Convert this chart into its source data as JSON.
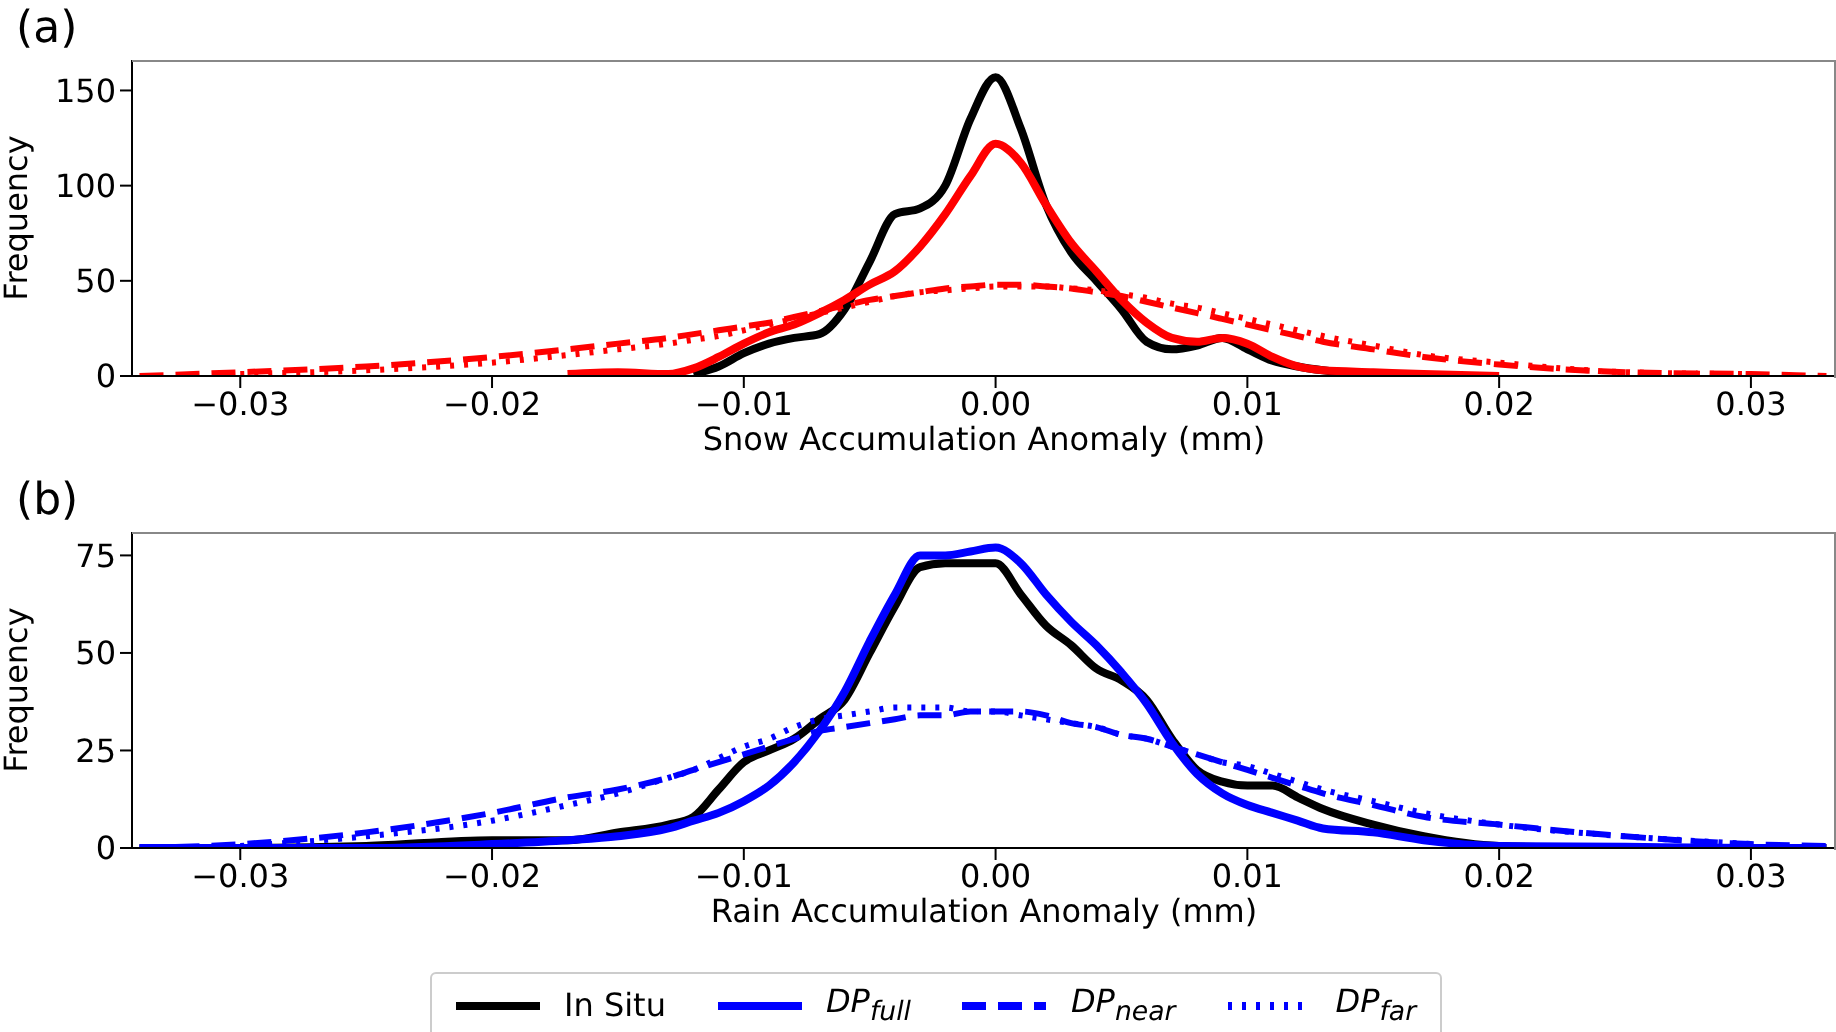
{
  "chart_data": [
    {
      "type": "line",
      "title": "(a)",
      "xlabel": "Snow Accumulation Anomaly (mm)",
      "ylabel": "Frequency",
      "x": [
        -0.034,
        -0.03,
        -0.025,
        -0.02,
        -0.017,
        -0.015,
        -0.013,
        -0.012,
        -0.011,
        -0.01,
        -0.009,
        -0.008,
        -0.007,
        -0.006,
        -0.005,
        -0.004,
        -0.003,
        -0.002,
        -0.001,
        0,
        0.001,
        0.002,
        0.003,
        0.004,
        0.005,
        0.006,
        0.007,
        0.008,
        0.009,
        0.01,
        0.011,
        0.012,
        0.013,
        0.015,
        0.017,
        0.02,
        0.025,
        0.03,
        0.033
      ],
      "xlim": [
        -0.0343,
        0.0333
      ],
      "ylim": [
        0,
        166
      ],
      "xticks": [
        {
          "value": -0.03,
          "label": "−0.03"
        },
        {
          "value": -0.02,
          "label": "−0.02"
        },
        {
          "value": -0.01,
          "label": "−0.01"
        },
        {
          "value": 0,
          "label": "0.00"
        },
        {
          "value": 0.01,
          "label": "0.01"
        },
        {
          "value": 0.02,
          "label": "0.02"
        },
        {
          "value": 0.03,
          "label": "0.03"
        }
      ],
      "yticks": [
        0,
        50,
        100,
        150
      ],
      "grid": false,
      "marker": "none",
      "series": [
        {
          "color": "#000000",
          "line_style": "solid",
          "values": [
            null,
            null,
            null,
            null,
            null,
            null,
            null,
            1,
            5,
            12,
            17,
            20,
            22,
            35,
            60,
            85,
            88,
            100,
            135,
            157,
            130,
            90,
            65,
            50,
            35,
            18,
            14,
            16,
            20,
            14,
            8,
            5,
            3,
            1,
            0,
            null,
            null,
            null,
            null
          ]
        },
        {
          "color": "#ff0000",
          "line_style": "solid",
          "values": [
            null,
            null,
            null,
            null,
            1,
            2,
            1,
            4,
            10,
            17,
            23,
            27,
            33,
            40,
            48,
            55,
            68,
            85,
            105,
            122,
            112,
            90,
            70,
            55,
            40,
            28,
            20,
            18,
            20,
            17,
            10,
            5,
            3,
            2,
            1,
            0,
            null,
            null,
            null
          ]
        },
        {
          "color": "#ff0000",
          "line_style": "dashed",
          "values": [
            0,
            2,
            5,
            10,
            14,
            17,
            20,
            22,
            24,
            26,
            28,
            31,
            34,
            37,
            40,
            42,
            44,
            46,
            47,
            48,
            48,
            47,
            46,
            44,
            42,
            39,
            36,
            33,
            30,
            27,
            24,
            21,
            18,
            14,
            10,
            6,
            2,
            1,
            0
          ]
        },
        {
          "color": "#ff0000",
          "line_style": "dotted",
          "values": [
            null,
            1,
            3,
            7,
            11,
            14,
            17,
            19,
            21,
            24,
            27,
            30,
            33,
            36,
            39,
            42,
            44,
            45,
            46,
            47,
            47,
            47,
            46,
            45,
            43,
            41,
            38,
            36,
            33,
            30,
            27,
            24,
            21,
            16,
            11,
            7,
            2,
            1,
            null
          ]
        }
      ]
    },
    {
      "type": "line",
      "title": "(b)",
      "xlabel": "Rain Accumulation Anomaly (mm)",
      "ylabel": "Frequency",
      "x": [
        -0.034,
        -0.03,
        -0.025,
        -0.02,
        -0.017,
        -0.015,
        -0.013,
        -0.012,
        -0.011,
        -0.01,
        -0.009,
        -0.008,
        -0.007,
        -0.006,
        -0.005,
        -0.004,
        -0.003,
        -0.002,
        -0.001,
        0,
        0.001,
        0.002,
        0.003,
        0.004,
        0.005,
        0.006,
        0.007,
        0.008,
        0.009,
        0.01,
        0.011,
        0.012,
        0.013,
        0.015,
        0.017,
        0.02,
        0.025,
        0.03,
        0.033
      ],
      "xlim": [
        -0.0343,
        0.0333
      ],
      "ylim": [
        0,
        81
      ],
      "xticks": [
        {
          "value": -0.03,
          "label": "−0.03"
        },
        {
          "value": -0.02,
          "label": "−0.02"
        },
        {
          "value": -0.01,
          "label": "−0.01"
        },
        {
          "value": 0,
          "label": "0.00"
        },
        {
          "value": 0.01,
          "label": "0.01"
        },
        {
          "value": 0.02,
          "label": "0.02"
        },
        {
          "value": 0.03,
          "label": "0.03"
        }
      ],
      "yticks": [
        0,
        25,
        50,
        75
      ],
      "grid": false,
      "marker": "none",
      "legend": "bottom",
      "series": [
        {
          "name": "In Situ",
          "color": "#000000",
          "line_style": "solid",
          "values": [
            0,
            0,
            0.5,
            2,
            2,
            4,
            6,
            8,
            15,
            22,
            25,
            28,
            33,
            38,
            50,
            62,
            72,
            73,
            73,
            73,
            65,
            57,
            52,
            46,
            43,
            38,
            28,
            20,
            17,
            16,
            16,
            13,
            10,
            6,
            3,
            0.5,
            0,
            0,
            0
          ]
        },
        {
          "name": "DP$_{full}$",
          "color": "#0000ff",
          "line_style": "solid",
          "values": [
            0,
            0,
            0,
            1,
            2,
            3,
            5,
            7,
            9,
            12,
            16,
            22,
            30,
            40,
            53,
            65,
            75,
            75,
            76,
            77,
            73,
            65,
            58,
            52,
            45,
            37,
            27,
            19,
            14,
            11,
            9,
            7,
            5,
            4,
            2,
            0.5,
            0.3,
            0,
            0
          ]
        },
        {
          "name": "DP$_{near}$",
          "color": "#0000ff",
          "line_style": "dashed",
          "values": [
            0,
            1,
            4,
            9,
            13,
            15,
            18,
            20,
            22,
            24,
            26,
            28,
            30,
            31,
            32,
            33,
            34,
            34,
            35,
            35,
            35,
            34,
            32,
            31,
            29,
            28,
            26,
            24,
            22,
            20,
            18,
            16,
            14,
            11,
            8,
            6,
            3,
            1,
            0.5
          ]
        },
        {
          "name": "DP$_{far}$",
          "color": "#0000ff",
          "line_style": "dotted",
          "values": [
            null,
            0.5,
            3,
            7,
            11,
            14,
            18,
            20,
            23,
            26,
            28,
            31,
            33,
            34,
            35,
            36,
            36,
            36,
            35,
            35,
            34,
            33,
            32,
            31,
            29,
            28,
            26,
            24,
            22,
            21,
            19,
            17,
            15,
            12,
            9,
            6,
            3,
            1,
            null
          ]
        }
      ]
    }
  ]
}
